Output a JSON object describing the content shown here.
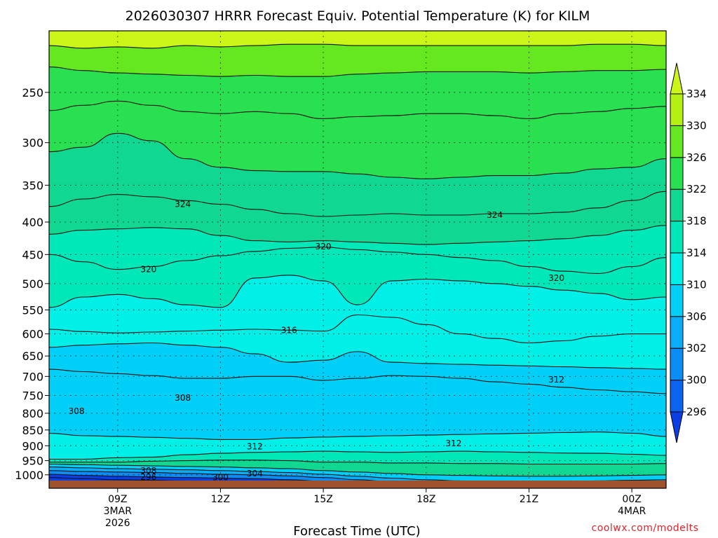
{
  "chart_data": {
    "type": "heatmap",
    "subtype": "time-height filled contour cross-section",
    "title": "2026030307 HRRR Forecast Equiv. Potential Temperature (K) for KILM",
    "xlabel": "Forecast Time (UTC)",
    "ylabel": "",
    "x_ticks": [
      {
        "hour": 9,
        "label": "09Z",
        "sub": [
          "3MAR",
          "2026"
        ]
      },
      {
        "hour": 12,
        "label": "12Z",
        "sub": []
      },
      {
        "hour": 15,
        "label": "15Z",
        "sub": []
      },
      {
        "hour": 18,
        "label": "18Z",
        "sub": []
      },
      {
        "hour": 21,
        "label": "21Z",
        "sub": []
      },
      {
        "hour": 24,
        "label": "00Z",
        "sub": [
          "4MAR"
        ]
      }
    ],
    "xlim": [
      7,
      25
    ],
    "y_axis": {
      "scale": "log",
      "units": "hPa",
      "direction": "pressure decreasing upward"
    },
    "y_ticks": [
      250,
      300,
      350,
      400,
      450,
      500,
      550,
      600,
      650,
      700,
      750,
      800,
      850,
      900,
      950,
      1000
    ],
    "ylim": [
      1050,
      200
    ],
    "grid": "dotted horizontal at each pressure tick",
    "surface_band_color": "#a0522d",
    "colorbar": {
      "levels": [
        296,
        300,
        302,
        306,
        310,
        314,
        318,
        322,
        326,
        330,
        334
      ],
      "labels": [
        "296",
        "300",
        "302",
        "306",
        "310",
        "314",
        "318",
        "322",
        "326",
        "330",
        "334"
      ],
      "colors": [
        "#0a3fe6",
        "#0b64f0",
        "#0c8cf5",
        "#0aaef8",
        "#00d0f8",
        "#00f0e8",
        "#00e8b8",
        "#10d890",
        "#28e050",
        "#66e820",
        "#b4f012",
        "#ccf518"
      ],
      "extends": "both",
      "position": "right"
    },
    "contour_labels": [
      {
        "text": "324",
        "hour": 10.9,
        "p": 375
      },
      {
        "text": "324",
        "hour": 20.0,
        "p": 390
      },
      {
        "text": "320",
        "hour": 15.0,
        "p": 437
      },
      {
        "text": "320",
        "hour": 9.9,
        "p": 475
      },
      {
        "text": "320",
        "hour": 21.8,
        "p": 490
      },
      {
        "text": "316",
        "hour": 14.0,
        "p": 592
      },
      {
        "text": "312",
        "hour": 21.8,
        "p": 708
      },
      {
        "text": "308",
        "hour": 10.9,
        "p": 757
      },
      {
        "text": "308",
        "hour": 7.8,
        "p": 794
      },
      {
        "text": "312",
        "hour": 13.0,
        "p": 903
      },
      {
        "text": "312",
        "hour": 18.8,
        "p": 893
      },
      {
        "text": "308",
        "hour": 9.9,
        "p": 985
      },
      {
        "text": "304",
        "hour": 13.0,
        "p": 995
      },
      {
        "text": "296",
        "hour": 9.9,
        "p": 1008
      },
      {
        "text": "300",
        "hour": 12.0,
        "p": 1009
      }
    ],
    "bands": [
      {
        "theta": 331,
        "color": "#b4f012",
        "top": [
          200,
          200,
          200,
          200,
          200,
          200,
          200,
          200,
          200,
          200,
          200,
          200,
          200,
          200,
          200,
          200,
          200,
          200,
          200,
          200
        ],
        "bot": [
          211,
          213,
          212,
          213,
          211,
          212,
          211,
          210,
          210,
          211,
          211,
          211,
          211,
          211,
          211,
          211,
          210,
          210,
          211,
          210
        ]
      },
      {
        "theta": 329,
        "color": "#66e820",
        "bot": [
          228,
          231,
          233,
          234,
          235,
          236,
          235,
          236,
          236,
          234,
          233,
          232,
          232,
          232,
          233,
          232,
          231,
          231,
          230,
          230
        ]
      },
      {
        "theta": 327,
        "color": "#28e050",
        "bot": [
          267,
          262,
          258,
          262,
          268,
          270,
          268,
          270,
          275,
          273,
          272,
          270,
          270,
          272,
          275,
          270,
          268,
          265,
          263,
          263
        ]
      },
      {
        "theta": 325,
        "color": "#28e050",
        "bot": [
          310,
          305,
          290,
          298,
          318,
          328,
          332,
          333,
          333,
          336,
          340,
          342,
          340,
          338,
          338,
          335,
          330,
          328,
          318,
          305
        ]
      },
      {
        "theta": 323,
        "color": "#10d890",
        "bot": [
          378,
          368,
          362,
          365,
          370,
          375,
          382,
          388,
          392,
          390,
          388,
          390,
          390,
          388,
          388,
          386,
          380,
          370,
          358,
          345
        ]
      },
      {
        "theta": 321,
        "color": "#10d890",
        "bot": [
          418,
          412,
          410,
          408,
          410,
          420,
          428,
          430,
          428,
          430,
          432,
          434,
          432,
          430,
          428,
          425,
          420,
          412,
          405,
          400
        ]
      },
      {
        "theta": 319,
        "color": "#00e8b8",
        "bot": [
          450,
          462,
          475,
          470,
          460,
          452,
          445,
          440,
          438,
          442,
          446,
          450,
          455,
          460,
          470,
          478,
          482,
          470,
          455,
          455
        ]
      },
      {
        "theta": 317,
        "color": "#00e8b8",
        "bot": [
          545,
          525,
          520,
          528,
          540,
          545,
          490,
          485,
          495,
          540,
          495,
          492,
          495,
          500,
          505,
          512,
          518,
          530,
          525,
          510
        ]
      },
      {
        "theta": 315,
        "color": "#00f0e8",
        "bot": [
          590,
          595,
          598,
          596,
          594,
          592,
          590,
          592,
          594,
          560,
          565,
          580,
          600,
          610,
          620,
          615,
          605,
          600,
          600,
          630
        ]
      },
      {
        "theta": 313,
        "color": "#00f0e8",
        "bot": [
          630,
          625,
          622,
          620,
          625,
          630,
          645,
          665,
          660,
          640,
          665,
          668,
          670,
          672,
          674,
          676,
          678,
          680,
          682,
          684
        ]
      },
      {
        "theta": 311,
        "color": "#00d0f8",
        "bot": [
          682,
          688,
          693,
          698,
          705,
          705,
          700,
          700,
          710,
          705,
          698,
          700,
          705,
          714,
          720,
          728,
          735,
          740,
          745,
          748
        ]
      },
      {
        "theta": 309,
        "color": "#00d0f8",
        "bot": [
          860,
          868,
          870,
          873,
          876,
          880,
          880,
          875,
          872,
          870,
          868,
          866,
          864,
          862,
          860,
          858,
          856,
          860,
          870,
          900
        ]
      },
      {
        "theta": 311,
        "color": "#00f0e8",
        "bot": [
          945,
          945,
          940,
          938,
          930,
          925,
          922,
          920,
          918,
          920,
          922,
          920,
          918,
          920,
          922,
          924,
          925,
          928,
          932,
          935
        ]
      },
      {
        "theta": 313,
        "color": "#00e8b8",
        "bot": [
          955,
          955,
          955,
          952,
          950,
          948,
          948,
          950,
          955,
          955,
          958,
          958,
          960,
          960,
          962,
          962,
          962,
          962,
          960,
          958
        ]
      },
      {
        "theta": 315,
        "color": "#10d890",
        "bot": [
          962,
          964,
          966,
          968,
          970,
          972,
          975,
          978,
          985,
          990,
          995,
          1000,
          1002,
          1004,
          1005,
          1005,
          1004,
          1002,
          1000,
          998
        ]
      },
      {
        "theta": 311,
        "color": "#00d0f8",
        "bot": [
          972,
          975,
          978,
          980,
          982,
          985,
          988,
          992,
          998,
          1005,
          1012,
          1018,
          1022,
          1025,
          1026,
          1025,
          1022,
          1020,
          1018,
          1016
        ]
      },
      {
        "theta": 307,
        "color": "#0aaef8",
        "bot": [
          985,
          988,
          990,
          992,
          995,
          998,
          1000,
          1004,
          1010,
          1018,
          1026,
          1032,
          1035,
          1036,
          1037,
          1036,
          1034,
          1032,
          1030,
          1028
        ]
      },
      {
        "theta": 303,
        "color": "#0c8cf5",
        "bot": [
          998,
          1002,
          1005,
          1008,
          1010,
          1012,
          1014,
          1018,
          1024,
          1030,
          1036,
          1040,
          1042,
          1043,
          1043,
          1042,
          1040,
          1038,
          1036,
          1034
        ]
      },
      {
        "theta": 299,
        "color": "#0a3fe6",
        "bot": [
          1010,
          1014,
          1018,
          1020,
          1022,
          1024,
          1026,
          1030,
          1035,
          1040,
          1044,
          1046,
          1047,
          1047,
          1047,
          1047,
          1046,
          1045,
          1044,
          1042
        ]
      },
      {
        "theta": 297,
        "color": "#0a3fe6",
        "bot": [
          1035,
          1038,
          1040,
          1042,
          1044,
          1045,
          1046,
          1047,
          1048,
          1048,
          1048,
          1048,
          1048,
          1048,
          1048,
          1048,
          1048,
          1048,
          1048,
          1048
        ]
      }
    ],
    "band_hours": [
      7,
      8,
      9,
      10,
      11,
      12,
      13,
      14,
      15,
      16,
      17,
      18,
      19,
      20,
      21,
      22,
      23,
      24,
      25,
      25.2
    ]
  },
  "credit": "coolwx.com/modelts"
}
